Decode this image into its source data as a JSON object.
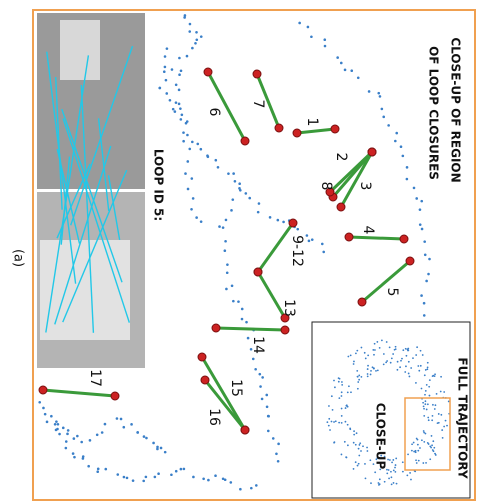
{
  "figure": {
    "caption": "(a)",
    "title_lines": [
      "CLOSE-UP OF REGION",
      "OF LOOP CLOSURES"
    ],
    "photo_label": "LOOP ID 5:",
    "loops": [
      "1",
      "2",
      "8",
      "3",
      "4",
      "5",
      "6",
      "7",
      "9-12",
      "13",
      "14",
      "15",
      "16",
      "17"
    ],
    "inset": {
      "title": "FULL TRAJECTORY",
      "box_label": "CLOSE-UP"
    }
  }
}
